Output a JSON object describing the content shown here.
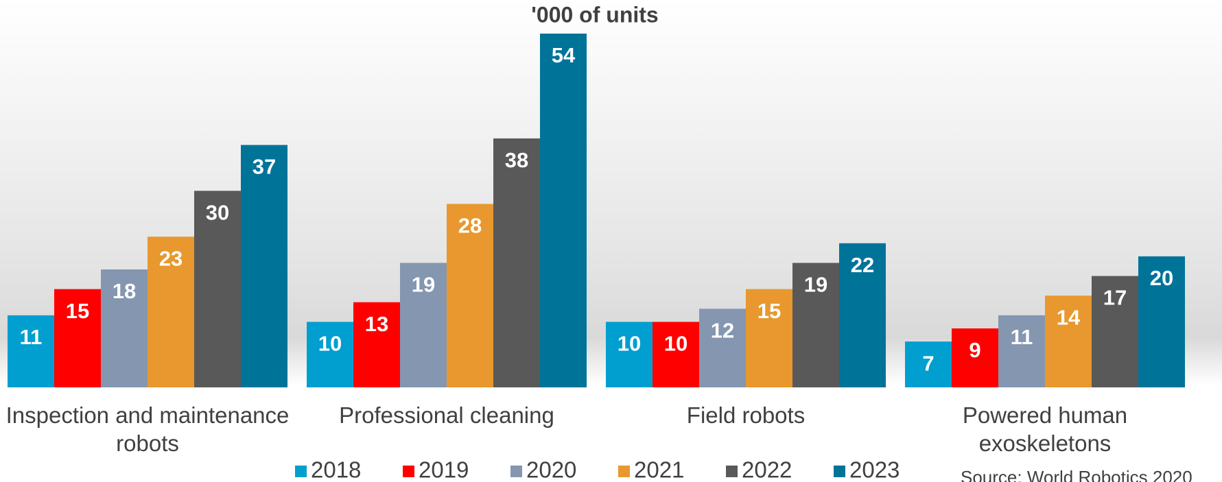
{
  "chart_data": {
    "type": "bar",
    "title": "'000 of units",
    "categories": [
      "Inspection and maintenance robots",
      "Professional cleaning",
      "Field robots",
      "Powered human exoskeletons"
    ],
    "series": [
      {
        "name": "2018",
        "color": "#009fd0",
        "values": [
          11,
          10,
          10,
          7
        ]
      },
      {
        "name": "2019",
        "color": "#ff0000",
        "values": [
          15,
          13,
          10,
          9
        ]
      },
      {
        "name": "2020",
        "color": "#8496b0",
        "values": [
          18,
          19,
          12,
          11
        ]
      },
      {
        "name": "2021",
        "color": "#e8982e",
        "values": [
          23,
          28,
          15,
          14
        ]
      },
      {
        "name": "2022",
        "color": "#595959",
        "values": [
          30,
          38,
          19,
          17
        ]
      },
      {
        "name": "2023",
        "color": "#007399",
        "values": [
          37,
          54,
          22,
          20
        ]
      }
    ],
    "source": "Source: World Robotics 2020"
  }
}
